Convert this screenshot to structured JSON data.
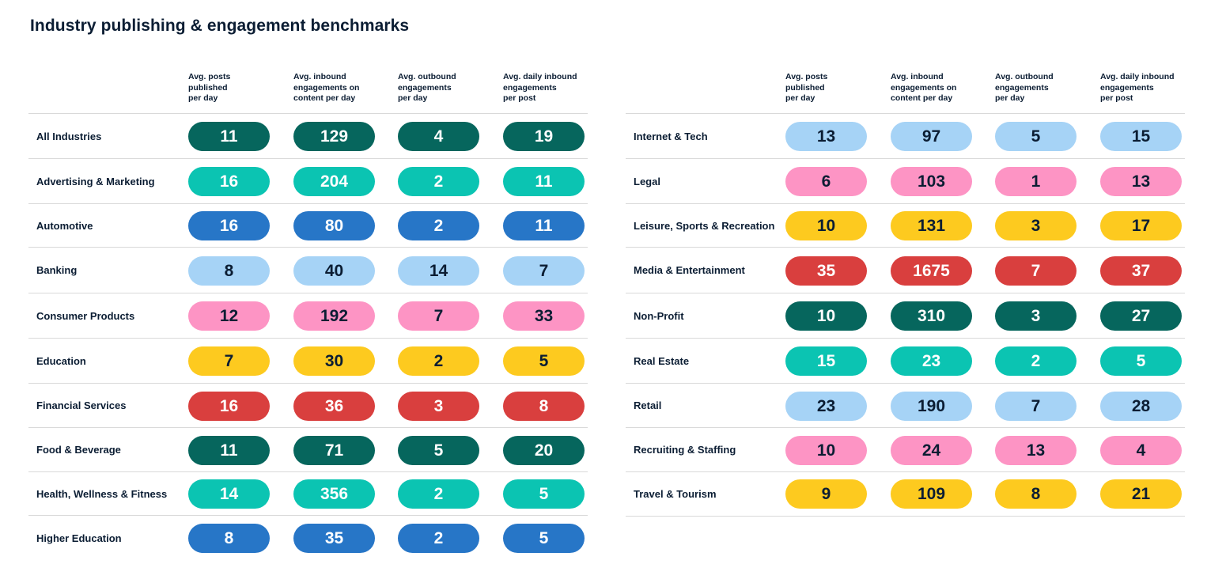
{
  "title": "Industry publishing & engagement benchmarks",
  "headers": [
    [
      "Avg. posts",
      "published",
      "per day"
    ],
    [
      "Avg. inbound",
      "engagements on",
      "content per day"
    ],
    [
      "Avg. outbound",
      "engagements",
      "per day"
    ],
    [
      "Avg. daily inbound",
      "engagements",
      "per post"
    ]
  ],
  "colors": {
    "dark_green": "#06665d",
    "teal": "#0bc4b2",
    "blue": "#2776c7",
    "light_blue": "#a6d3f6",
    "pink": "#fd94c4",
    "yellow": "#fdca1f",
    "red": "#d93f3e"
  },
  "chart_data": {
    "type": "table",
    "title": "Industry publishing & engagement benchmarks",
    "columns": [
      "Avg. posts published per day",
      "Avg. inbound engagements on content per day",
      "Avg. outbound engagements per day",
      "Avg. daily inbound engagements per post"
    ],
    "left_rows": [
      {
        "industry": "All Industries",
        "values": [
          11,
          129,
          4,
          19
        ],
        "color": "dark_green"
      },
      {
        "industry": "Advertising & Marketing",
        "values": [
          16,
          204,
          2,
          11
        ],
        "color": "teal"
      },
      {
        "industry": "Automotive",
        "values": [
          16,
          80,
          2,
          11
        ],
        "color": "blue"
      },
      {
        "industry": "Banking",
        "values": [
          8,
          40,
          14,
          7
        ],
        "color": "light_blue"
      },
      {
        "industry": "Consumer Products",
        "values": [
          12,
          192,
          7,
          33
        ],
        "color": "pink"
      },
      {
        "industry": "Education",
        "values": [
          7,
          30,
          2,
          5
        ],
        "color": "yellow"
      },
      {
        "industry": "Financial Services",
        "values": [
          16,
          36,
          3,
          8
        ],
        "color": "red"
      },
      {
        "industry": "Food & Beverage",
        "values": [
          11,
          71,
          5,
          20
        ],
        "color": "dark_green"
      },
      {
        "industry": "Health, Wellness & Fitness",
        "values": [
          14,
          356,
          2,
          5
        ],
        "color": "teal"
      },
      {
        "industry": "Higher Education",
        "values": [
          8,
          35,
          2,
          5
        ],
        "color": "blue"
      }
    ],
    "right_rows": [
      {
        "industry": "Internet & Tech",
        "values": [
          13,
          97,
          5,
          15
        ],
        "color": "light_blue"
      },
      {
        "industry": "Legal",
        "values": [
          6,
          103,
          1,
          13
        ],
        "color": "pink"
      },
      {
        "industry": "Leisure, Sports & Recreation",
        "values": [
          10,
          131,
          3,
          17
        ],
        "color": "yellow"
      },
      {
        "industry": "Media & Entertainment",
        "values": [
          35,
          1675,
          7,
          37
        ],
        "color": "red"
      },
      {
        "industry": "Non-Profit",
        "values": [
          10,
          310,
          3,
          27
        ],
        "color": "dark_green"
      },
      {
        "industry": "Real Estate",
        "values": [
          15,
          23,
          2,
          5
        ],
        "color": "teal"
      },
      {
        "industry": "Retail",
        "values": [
          23,
          190,
          7,
          28
        ],
        "color": "light_blue"
      },
      {
        "industry": "Recruiting & Staffing",
        "values": [
          10,
          24,
          13,
          4
        ],
        "color": "pink"
      },
      {
        "industry": "Travel & Tourism",
        "values": [
          9,
          109,
          8,
          21
        ],
        "color": "yellow"
      }
    ]
  }
}
